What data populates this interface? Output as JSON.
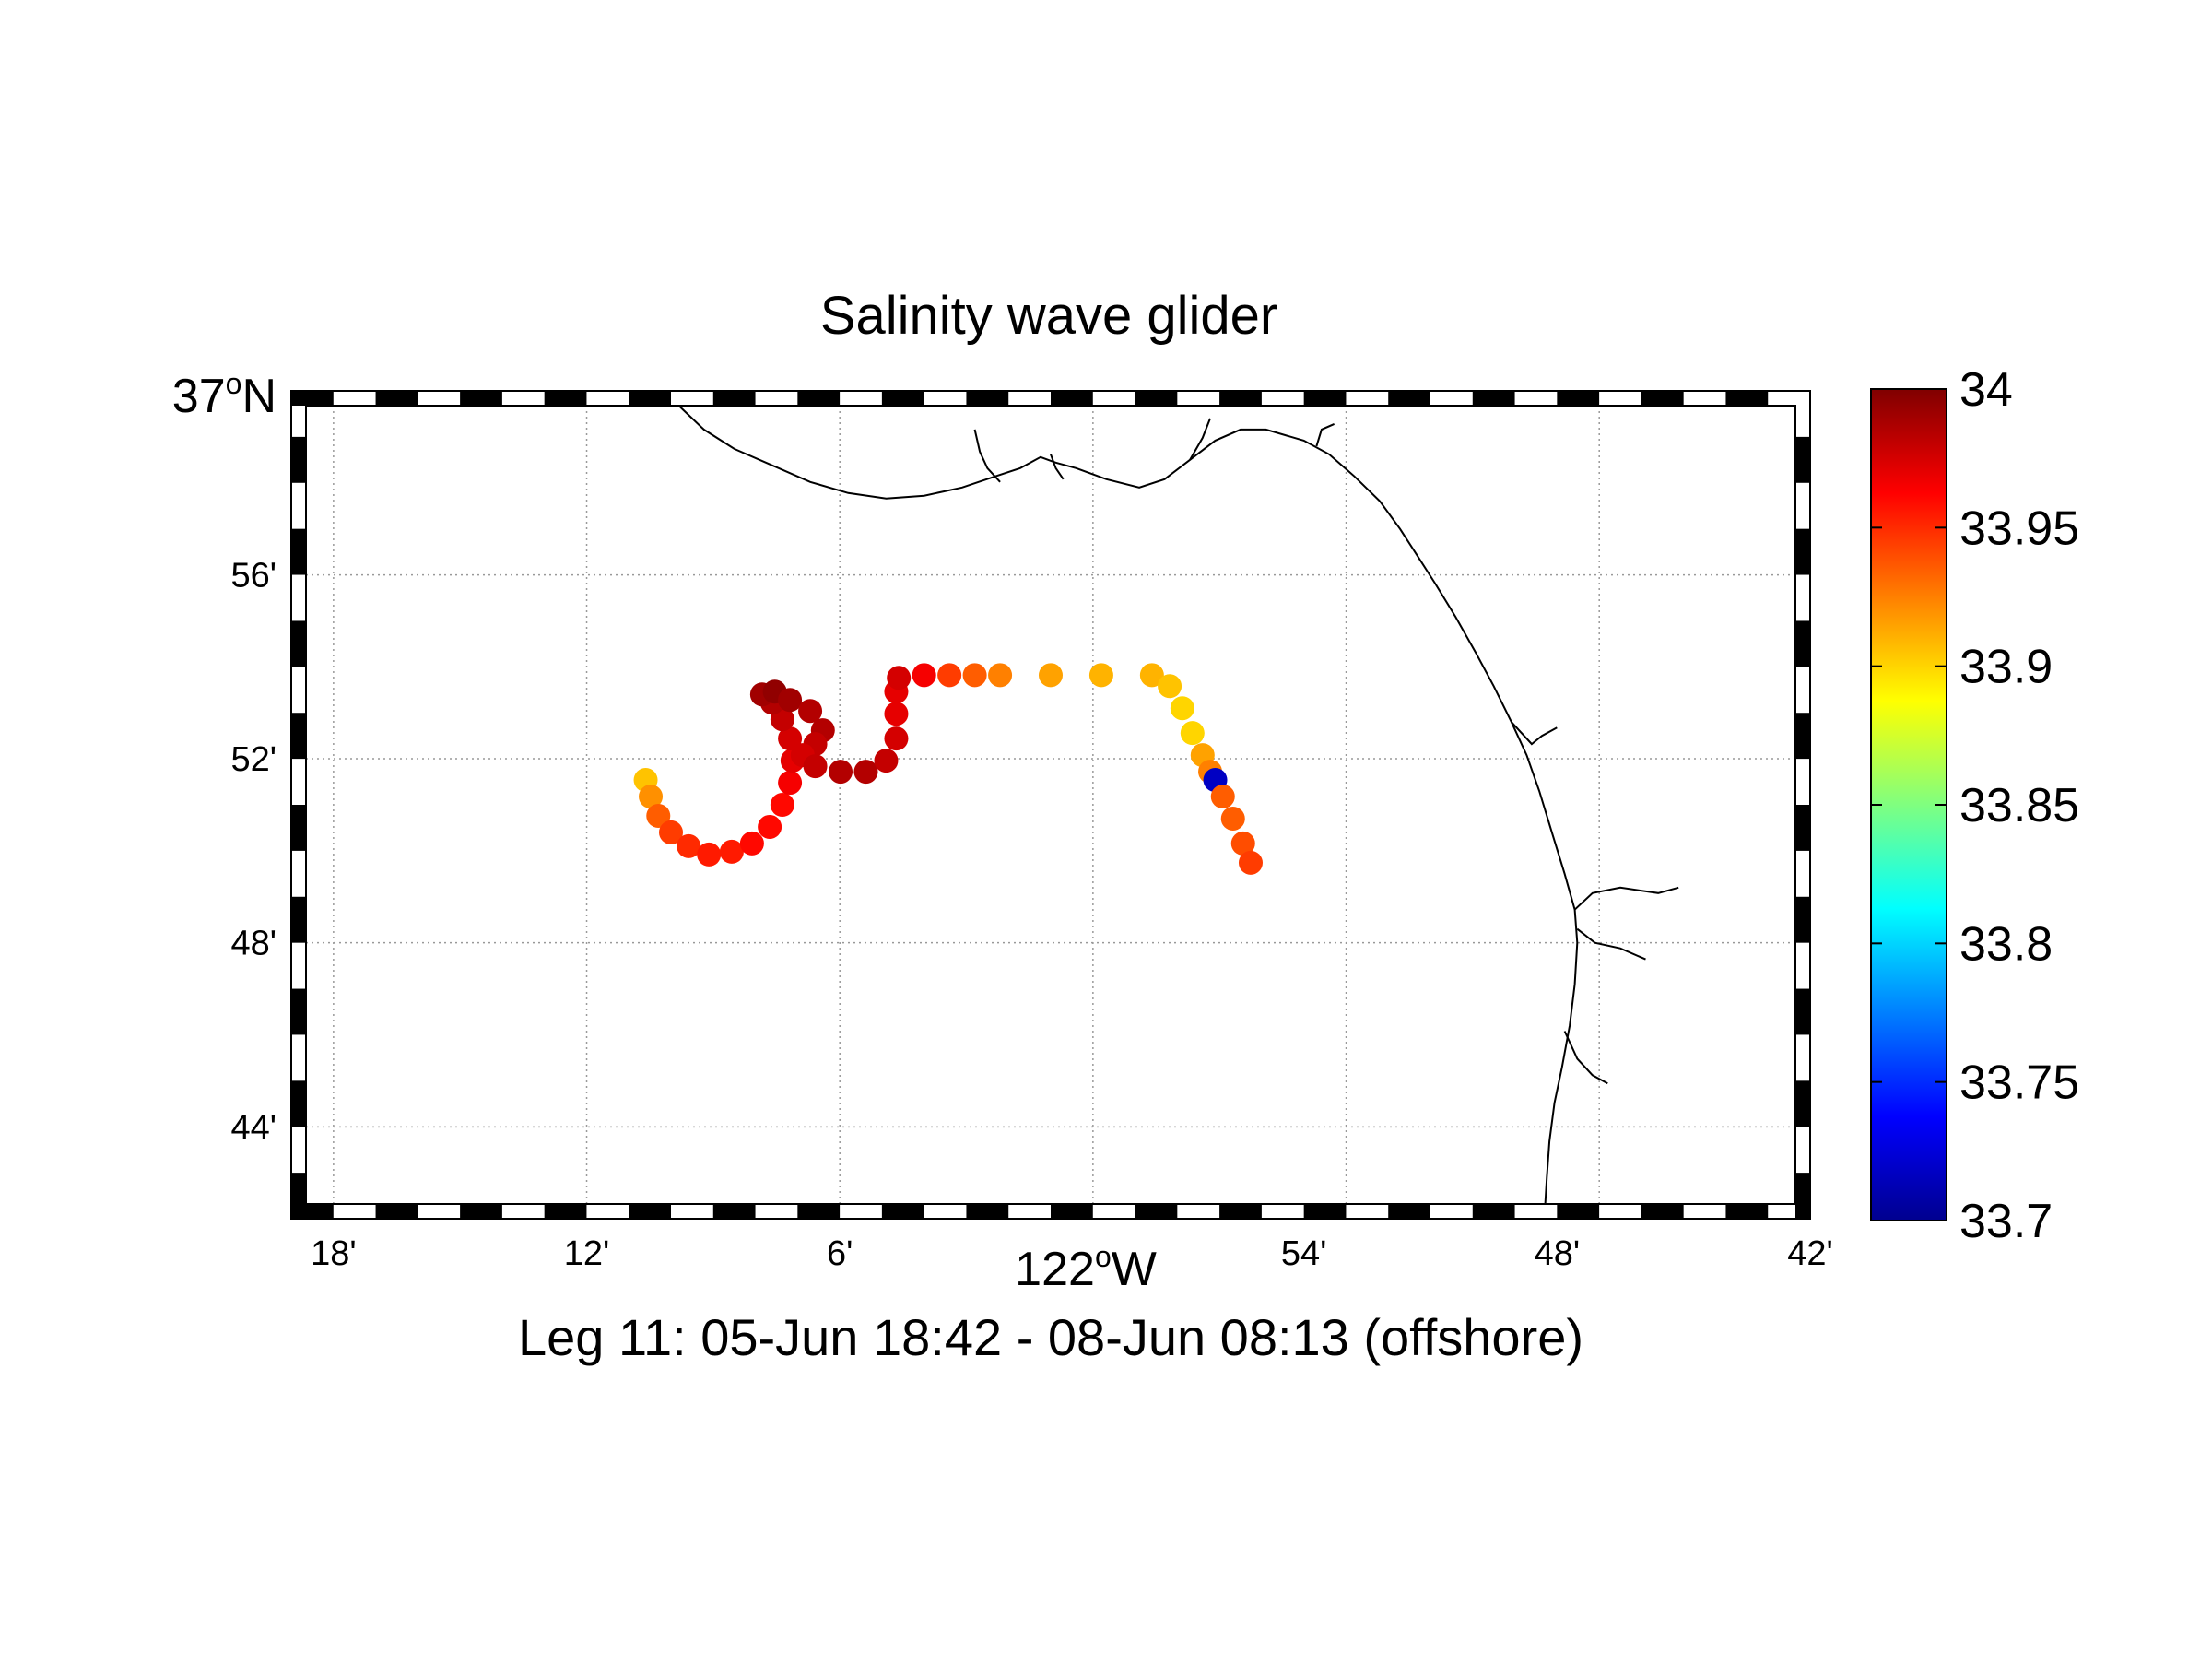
{
  "figure": {
    "title": "Salinity wave glider",
    "caption": "Leg 11: 05-Jun 18:42 - 08-Jun 08:13 (offshore)"
  },
  "map": {
    "lon_min": -122.3,
    "lon_max": -121.7,
    "lat_min": 36.7,
    "lat_max": 37.0,
    "xticks": [
      {
        "lon": -122.2833,
        "label": "18'"
      },
      {
        "lon": -122.1833,
        "label": "12'"
      },
      {
        "lon": -122.0833,
        "label": "6'"
      },
      {
        "lon": -121.9,
        "label": "54'"
      },
      {
        "lon": -121.8,
        "label": "48'"
      },
      {
        "lon": -121.7,
        "label": "42'"
      }
    ],
    "xlabel": {
      "main": "122",
      "sup": "o",
      "suffix": "W",
      "lon": -122.0
    },
    "yticks": [
      {
        "lat": 36.9333,
        "label": "56'"
      },
      {
        "lat": 36.8667,
        "label": "52'"
      },
      {
        "lat": 36.8,
        "label": "48'"
      },
      {
        "lat": 36.7333,
        "label": "44'"
      }
    ],
    "ylabel_top": {
      "main": "37",
      "sup": "o",
      "suffix": "N"
    },
    "grid_lons": [
      -122.2833,
      -122.1833,
      -122.0833,
      -121.9833,
      -121.8833,
      -121.7833
    ],
    "grid_lats": [
      36.9333,
      36.8667,
      36.8,
      36.7333
    ],
    "coastline": [
      [
        -122.153,
        37.0
      ],
      [
        -122.145,
        36.993
      ],
      [
        -122.137,
        36.986
      ],
      [
        -122.125,
        36.979
      ],
      [
        -122.11,
        36.973
      ],
      [
        -122.095,
        36.967
      ],
      [
        -122.08,
        36.963
      ],
      [
        -122.065,
        36.961
      ],
      [
        -122.05,
        36.962
      ],
      [
        -122.035,
        36.965
      ],
      [
        -122.022,
        36.969
      ],
      [
        -122.012,
        36.972
      ],
      [
        -122.004,
        36.976
      ],
      [
        -121.998,
        36.974
      ],
      [
        -121.99,
        36.972
      ],
      [
        -121.978,
        36.968
      ],
      [
        -121.965,
        36.965
      ],
      [
        -121.955,
        36.968
      ],
      [
        -121.945,
        36.975
      ],
      [
        -121.935,
        36.982
      ],
      [
        -121.925,
        36.986
      ],
      [
        -121.915,
        36.986
      ],
      [
        -121.9,
        36.982
      ],
      [
        -121.89,
        36.977
      ],
      [
        -121.88,
        36.969
      ],
      [
        -121.87,
        36.96
      ],
      [
        -121.862,
        36.95
      ],
      [
        -121.855,
        36.94
      ],
      [
        -121.848,
        36.93
      ],
      [
        -121.84,
        36.918
      ],
      [
        -121.832,
        36.905
      ],
      [
        -121.825,
        36.893
      ],
      [
        -121.818,
        36.88
      ],
      [
        -121.812,
        36.868
      ],
      [
        -121.807,
        36.855
      ],
      [
        -121.802,
        36.84
      ],
      [
        -121.797,
        36.825
      ],
      [
        -121.793,
        36.812
      ],
      [
        -121.792,
        36.8
      ],
      [
        -121.793,
        36.785
      ],
      [
        -121.795,
        36.77
      ],
      [
        -121.798,
        36.755
      ],
      [
        -121.801,
        36.742
      ],
      [
        -121.803,
        36.728
      ],
      [
        -121.804,
        36.715
      ],
      [
        -121.805,
        36.7
      ]
    ],
    "rivers": [
      [
        [
          -122.03,
          36.986
        ],
        [
          -122.028,
          36.978
        ],
        [
          -122.025,
          36.972
        ],
        [
          -122.02,
          36.967
        ]
      ],
      [
        [
          -122.0,
          36.977
        ],
        [
          -121.998,
          36.972
        ],
        [
          -121.995,
          36.968
        ]
      ],
      [
        [
          -121.945,
          36.975
        ],
        [
          -121.94,
          36.983
        ],
        [
          -121.937,
          36.99
        ]
      ],
      [
        [
          -121.895,
          36.98
        ],
        [
          -121.893,
          36.986
        ],
        [
          -121.888,
          36.988
        ]
      ],
      [
        [
          -121.818,
          36.88
        ],
        [
          -121.81,
          36.872
        ],
        [
          -121.806,
          36.875
        ],
        [
          -121.8,
          36.878
        ]
      ],
      [
        [
          -121.793,
          36.812
        ],
        [
          -121.786,
          36.818
        ],
        [
          -121.775,
          36.82
        ],
        [
          -121.76,
          36.818
        ],
        [
          -121.752,
          36.82
        ]
      ],
      [
        [
          -121.792,
          36.805
        ],
        [
          -121.785,
          36.8
        ],
        [
          -121.775,
          36.798
        ],
        [
          -121.765,
          36.794
        ]
      ],
      [
        [
          -121.797,
          36.768
        ],
        [
          -121.792,
          36.758
        ],
        [
          -121.786,
          36.752
        ],
        [
          -121.78,
          36.749
        ]
      ]
    ]
  },
  "colorbar": {
    "min": 33.7,
    "max": 34.0,
    "colormap": "jet",
    "ticks": [
      {
        "value": 34.0,
        "label": "34"
      },
      {
        "value": 33.95,
        "label": "33.95"
      },
      {
        "value": 33.9,
        "label": "33.9"
      },
      {
        "value": 33.85,
        "label": "33.85"
      },
      {
        "value": 33.8,
        "label": "33.8"
      },
      {
        "value": 33.75,
        "label": "33.75"
      },
      {
        "value": 33.7,
        "label": "33.7"
      }
    ]
  },
  "chart_data": {
    "type": "scatter",
    "title": "Salinity wave glider",
    "xlabel": "122°W",
    "ylabel": "",
    "xlim": [
      -122.3,
      -121.7
    ],
    "ylim": [
      36.7,
      37.0
    ],
    "colorbar_range": [
      33.7,
      34.0
    ],
    "grid": true,
    "points_lon_lat_salinity": [
      [
        -122.16,
        36.859,
        33.905
      ],
      [
        -122.158,
        36.853,
        33.92
      ],
      [
        -122.155,
        36.846,
        33.935
      ],
      [
        -122.15,
        36.84,
        33.945
      ],
      [
        -122.143,
        36.835,
        33.95
      ],
      [
        -122.135,
        36.832,
        33.955
      ],
      [
        -122.126,
        36.833,
        33.955
      ],
      [
        -122.118,
        36.836,
        33.96
      ],
      [
        -122.111,
        36.842,
        33.96
      ],
      [
        -122.106,
        36.85,
        33.96
      ],
      [
        -122.103,
        36.858,
        33.965
      ],
      [
        -122.102,
        36.866,
        33.97
      ],
      [
        -122.103,
        36.874,
        33.975
      ],
      [
        -122.106,
        36.881,
        33.98
      ],
      [
        -122.11,
        36.887,
        33.985
      ],
      [
        -122.114,
        36.89,
        33.99
      ],
      [
        -122.109,
        36.891,
        33.995
      ],
      [
        -122.103,
        36.888,
        33.99
      ],
      [
        -122.095,
        36.884,
        33.985
      ],
      [
        -122.09,
        36.877,
        33.985
      ],
      [
        -122.093,
        36.872,
        33.98
      ],
      [
        -122.098,
        36.868,
        33.975
      ],
      [
        -122.093,
        36.864,
        33.98
      ],
      [
        -122.083,
        36.862,
        33.985
      ],
      [
        -122.073,
        36.862,
        33.985
      ],
      [
        -122.065,
        36.866,
        33.98
      ],
      [
        -122.061,
        36.874,
        33.975
      ],
      [
        -122.061,
        36.883,
        33.97
      ],
      [
        -122.061,
        36.891,
        33.97
      ],
      [
        -122.06,
        36.896,
        33.975
      ],
      [
        -122.05,
        36.897,
        33.965
      ],
      [
        -122.04,
        36.897,
        33.945
      ],
      [
        -122.03,
        36.897,
        33.935
      ],
      [
        -122.02,
        36.897,
        33.925
      ],
      [
        -122.0,
        36.897,
        33.915
      ],
      [
        -121.98,
        36.897,
        33.91
      ],
      [
        -121.96,
        36.897,
        33.91
      ],
      [
        -121.953,
        36.893,
        33.905
      ],
      [
        -121.948,
        36.885,
        33.9
      ],
      [
        -121.944,
        36.876,
        33.9
      ],
      [
        -121.94,
        36.868,
        33.915
      ],
      [
        -121.937,
        36.862,
        33.925
      ],
      [
        -121.935,
        36.859,
        33.72
      ],
      [
        -121.932,
        36.853,
        33.935
      ],
      [
        -121.928,
        36.845,
        33.935
      ],
      [
        -121.924,
        36.836,
        33.94
      ],
      [
        -121.921,
        36.829,
        33.945
      ]
    ]
  }
}
